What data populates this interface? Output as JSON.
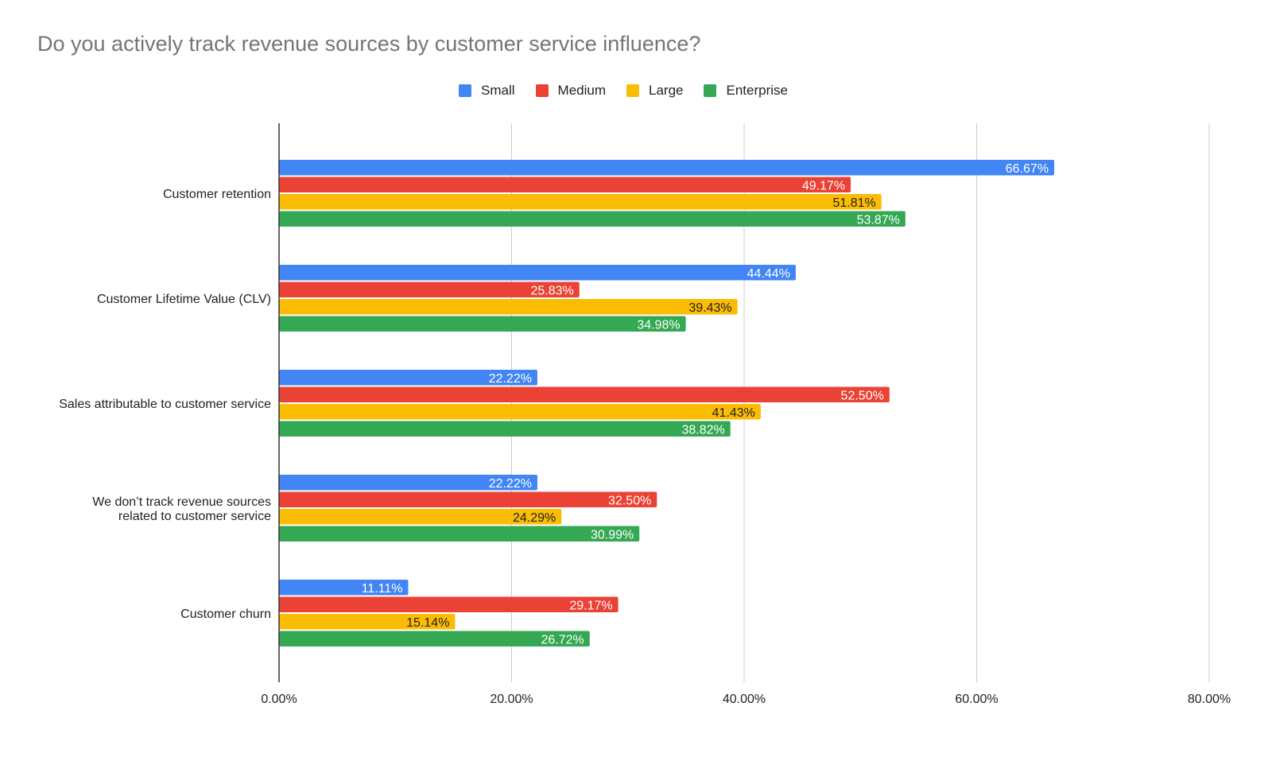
{
  "chart_data": {
    "type": "bar",
    "orientation": "horizontal",
    "title": "Do you actively track revenue sources by customer service influence?",
    "xlabel": "",
    "ylabel": "",
    "xlim": [
      0,
      80
    ],
    "xticks": [
      "0.00%",
      "20.00%",
      "40.00%",
      "60.00%",
      "80.00%"
    ],
    "grid": "vertical",
    "legend_position": "top-center",
    "categories": [
      [
        "Customer retention"
      ],
      [
        "Customer Lifetime Value (CLV)"
      ],
      [
        "Sales attributable to customer service"
      ],
      [
        "We don’t track revenue sources",
        "related to customer service"
      ],
      [
        "Customer churn"
      ]
    ],
    "series": [
      {
        "name": "Small",
        "color": "#4285F4",
        "label_color": "#ffffff",
        "values": [
          66.67,
          44.44,
          22.22,
          22.22,
          11.11
        ],
        "labels": [
          "66.67%",
          "44.44%",
          "22.22%",
          "22.22%",
          "11.11%"
        ]
      },
      {
        "name": "Medium",
        "color": "#EA4335",
        "label_color": "#ffffff",
        "values": [
          49.17,
          25.83,
          52.5,
          32.5,
          29.17
        ],
        "labels": [
          "49.17%",
          "25.83%",
          "52.50%",
          "32.50%",
          "29.17%"
        ]
      },
      {
        "name": "Large",
        "color": "#FBBC04",
        "label_color": "#222222",
        "values": [
          51.81,
          39.43,
          41.43,
          24.29,
          15.14
        ],
        "labels": [
          "51.81%",
          "39.43%",
          "41.43%",
          "24.29%",
          "15.14%"
        ]
      },
      {
        "name": "Enterprise",
        "color": "#34A853",
        "label_color": "#ffffff",
        "values": [
          53.87,
          34.98,
          38.82,
          30.99,
          26.72
        ],
        "labels": [
          "53.87%",
          "34.98%",
          "38.82%",
          "30.99%",
          "26.72%"
        ]
      }
    ]
  }
}
